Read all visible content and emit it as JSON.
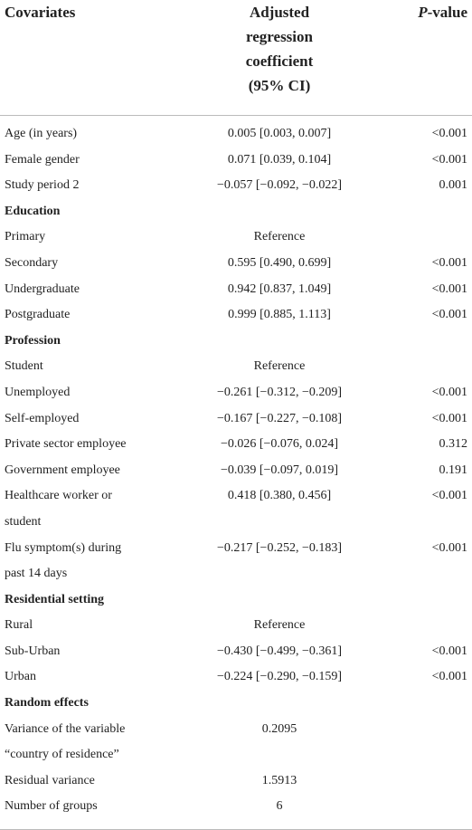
{
  "table": {
    "header": [
      "Covariates",
      [
        "Adjusted",
        "regression",
        "coefficient",
        "(95% CI)"
      ],
      "P-value"
    ],
    "rows": [
      {
        "cells": [
          "Age (in years)",
          "0.005 [0.003, 0.007]",
          "<0.001"
        ]
      },
      {
        "cells": [
          "Female gender",
          "0.071 [0.039, 0.104]",
          "<0.001"
        ]
      },
      {
        "cells": [
          "Study period 2",
          "−0.057 [−0.092, −0.022]",
          "0.001"
        ]
      },
      {
        "cells": [
          "Education"
        ],
        "section": true
      },
      {
        "cells": [
          "Primary",
          "Reference"
        ]
      },
      {
        "cells": [
          "Secondary",
          "0.595 [0.490, 0.699]",
          "<0.001"
        ]
      },
      {
        "cells": [
          "Undergraduate",
          "0.942 [0.837, 1.049]",
          "<0.001"
        ]
      },
      {
        "cells": [
          "Postgraduate",
          "0.999 [0.885, 1.113]",
          "<0.001"
        ]
      },
      {
        "cells": [
          "Profession"
        ],
        "section": true
      },
      {
        "cells": [
          "Student",
          "Reference"
        ]
      },
      {
        "cells": [
          "Unemployed",
          "−0.261 [−0.312, −0.209]",
          "<0.001"
        ]
      },
      {
        "cells": [
          "Self-employed",
          "−0.167 [−0.227, −0.108]",
          "<0.001"
        ]
      },
      {
        "cells": [
          "Private sector employee",
          "−0.026 [−0.076, 0.024]",
          "0.312"
        ]
      },
      {
        "cells": [
          "Government employee",
          "−0.039 [−0.097, 0.019]",
          "0.191"
        ]
      },
      {
        "cells": [
          [
            "Healthcare worker or",
            "student"
          ],
          "0.418 [0.380, 0.456]",
          "<0.001"
        ]
      },
      {
        "cells": [
          [
            "Flu symptom(s) during",
            "past 14 days"
          ],
          "−0.217 [−0.252, −0.183]",
          "<0.001"
        ]
      },
      {
        "cells": [
          "Residential setting"
        ],
        "section": true
      },
      {
        "cells": [
          "Rural",
          "Reference"
        ]
      },
      {
        "cells": [
          "Sub-Urban",
          "−0.430 [−0.499, −0.361]",
          "<0.001"
        ]
      },
      {
        "cells": [
          "Urban",
          "−0.224 [−0.290, −0.159]",
          "<0.001"
        ]
      },
      {
        "cells": [
          "Random effects"
        ],
        "section": true
      },
      {
        "cells": [
          [
            "Variance of the variable",
            "“country of residence”"
          ],
          "0.2095"
        ]
      },
      {
        "cells": [
          "Residual variance",
          "1.5913"
        ]
      },
      {
        "cells": [
          "Number of groups",
          "6"
        ]
      }
    ]
  }
}
